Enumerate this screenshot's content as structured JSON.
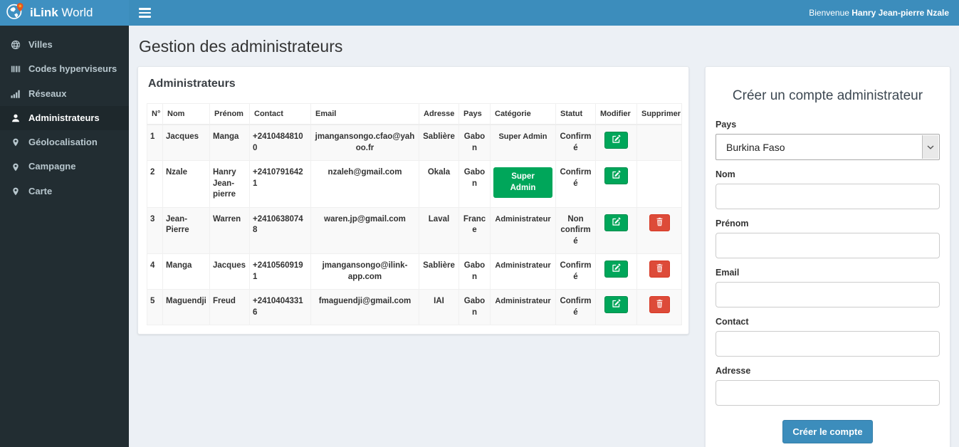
{
  "brand": {
    "bold": "iLink",
    "rest": " World"
  },
  "topbar": {
    "welcome_prefix": "Bienvenue ",
    "welcome_user": "Hanry Jean-pierre Nzale"
  },
  "page_title": "Gestion des administrateurs",
  "colors": {
    "navbar_blue": "#3c8dbc",
    "sidebar_dark": "#222d32",
    "sidebar_active": "#1e282c",
    "content_bg": "#ecf0f5",
    "success_green": "#00a65a",
    "danger_red": "#dd4b39",
    "logo_pin_orange": "#e8541e"
  },
  "sidebar": {
    "items": [
      {
        "label": "Villes",
        "icon": "globe-icon",
        "active": false
      },
      {
        "label": "Codes hyperviseurs",
        "icon": "barcode-icon",
        "active": false
      },
      {
        "label": "Réseaux",
        "icon": "signal-bars-icon",
        "active": false
      },
      {
        "label": "Administrateurs",
        "icon": "user-icon",
        "active": true
      },
      {
        "label": "Géolocalisation",
        "icon": "map-marker-icon",
        "active": false
      },
      {
        "label": "Campagne",
        "icon": "map-marker-icon",
        "active": false
      },
      {
        "label": "Carte",
        "icon": "map-marker-icon",
        "active": false
      }
    ]
  },
  "admins_panel": {
    "title": "Administrateurs",
    "columns": [
      "N°",
      "Nom",
      "Prénom",
      "Contact",
      "Email",
      "Adresse",
      "Pays",
      "Catégorie",
      "Statut",
      "Modifier",
      "Supprimer"
    ],
    "edit_icon": "edit-icon",
    "delete_icon": "trash-icon",
    "rows": [
      {
        "num": "1",
        "nom": "Jacques",
        "prenom": "Manga",
        "contact": "+24104848100",
        "email": "jmangansongo.cfao@yahoo.fr",
        "adresse": "Sablière",
        "pays": "Gabon",
        "categorie": "Super Admin",
        "categorie_badge": false,
        "statut": "Confirmé",
        "deletable": false
      },
      {
        "num": "2",
        "nom": "Nzale",
        "prenom": "Hanry Jean-pierre",
        "contact": "+24107916421",
        "email": "nzaleh@gmail.com",
        "adresse": "Okala",
        "pays": "Gabon",
        "categorie": "Super Admin",
        "categorie_badge": true,
        "statut": "Confirmé",
        "deletable": false
      },
      {
        "num": "3",
        "nom": "Jean-Pierre",
        "prenom": "Warren",
        "contact": "+24106380748",
        "email": "waren.jp@gmail.com",
        "adresse": "Laval",
        "pays": "France",
        "categorie": "Administrateur",
        "categorie_badge": false,
        "statut": "Non confirmé",
        "deletable": true
      },
      {
        "num": "4",
        "nom": "Manga",
        "prenom": "Jacques",
        "contact": "+24105609191",
        "email": "jmangansongo@ilink-app.com",
        "adresse": "Sablière",
        "pays": "Gabon",
        "categorie": "Administrateur",
        "categorie_badge": false,
        "statut": "Confirmé",
        "deletable": true
      },
      {
        "num": "5",
        "nom": "Maguendji",
        "prenom": "Freud",
        "contact": "+24104043316",
        "email": "fmaguendji@gmail.com",
        "adresse": "IAI",
        "pays": "Gabon",
        "categorie": "Administrateur",
        "categorie_badge": false,
        "statut": "Confirmé",
        "deletable": true
      }
    ]
  },
  "form_panel": {
    "title": "Créer un compte administrateur",
    "fields": [
      {
        "label": "Pays",
        "type": "select",
        "value": "Burkina Faso"
      },
      {
        "label": "Nom",
        "type": "input",
        "value": ""
      },
      {
        "label": "Prénom",
        "type": "input",
        "value": ""
      },
      {
        "label": "Email",
        "type": "input",
        "value": ""
      },
      {
        "label": "Contact",
        "type": "input",
        "value": ""
      },
      {
        "label": "Adresse",
        "type": "input",
        "value": ""
      }
    ],
    "submit_label": "Créer le compte"
  }
}
